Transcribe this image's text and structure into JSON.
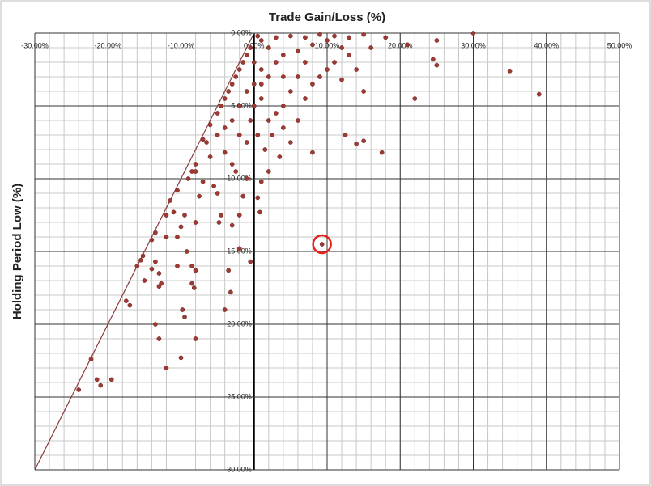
{
  "chart_data": {
    "type": "scatter",
    "title": "Trade Gain/Loss (%)",
    "y_label": "Holding Period Low (%)",
    "xlim": [
      -30,
      50
    ],
    "ylim": [
      -30,
      0
    ],
    "xticks": [
      {
        "value": -30,
        "label": "-30.00%"
      },
      {
        "value": -20,
        "label": "-20.00%"
      },
      {
        "value": -10,
        "label": "-10.00%"
      },
      {
        "value": 0,
        "label": "0.00%"
      },
      {
        "value": 10,
        "label": "10.00%"
      },
      {
        "value": 20,
        "label": "20.00%"
      },
      {
        "value": 30,
        "label": "30.00%"
      },
      {
        "value": 40,
        "label": "40.00%"
      },
      {
        "value": 50,
        "label": "50.00%"
      }
    ],
    "yticks": [
      {
        "value": 0,
        "label": "0.00%"
      },
      {
        "value": -5,
        "label": "-5.00%"
      },
      {
        "value": -10,
        "label": "-10.00%"
      },
      {
        "value": -15,
        "label": "-15.00%"
      },
      {
        "value": -20,
        "label": "-20.00%"
      },
      {
        "value": -25,
        "label": "-25.00%"
      },
      {
        "value": -30,
        "label": "-30.00%"
      }
    ],
    "grid": true,
    "minor_grid_step": {
      "x": 2,
      "y": 1
    },
    "reference_line": {
      "x": [
        -30,
        0
      ],
      "y": [
        -30,
        0
      ],
      "color": "#8b3a3a"
    },
    "highlight": {
      "x": 9.3,
      "y": -14.5,
      "color": "#e8201a"
    },
    "series": [
      {
        "color": "#9e3a34",
        "x": [
          30,
          35,
          39,
          25,
          25,
          24.5,
          22,
          21,
          17.5,
          15,
          14,
          12.5,
          8,
          9.3,
          -2,
          -0.5,
          -3.5,
          -3.2,
          -4,
          -8,
          -9.5,
          -9.8,
          -10,
          -12,
          -13,
          -13.5,
          -17,
          -17.5,
          -19.5,
          -21,
          -21.5,
          -22.3,
          -24,
          -15.2,
          -16,
          -14,
          -13.5,
          -13,
          -12.7,
          -13,
          -10.5,
          -8.5,
          -8,
          -8.5,
          -8.2,
          -9.2,
          -10.5,
          -10,
          -11,
          -12,
          -11.5,
          -9.5,
          -8,
          -7.5,
          -7,
          -5.5,
          -5,
          -4.5,
          -4.8,
          -3,
          -2,
          -1.5,
          0.5,
          0.8,
          1,
          2,
          -1,
          -2.5,
          -3,
          -4,
          -6,
          -8,
          -8.5,
          -6.5,
          -5,
          -4,
          -3,
          -2,
          -1,
          0,
          1,
          2,
          3,
          4,
          5,
          6,
          7,
          8,
          9,
          10,
          11,
          12,
          13,
          14,
          15,
          16,
          18,
          12,
          10,
          8,
          6,
          4,
          2,
          1,
          0.5,
          3,
          5,
          7,
          9,
          11,
          13,
          15,
          -1,
          -2,
          -3,
          -4,
          -5,
          -6,
          -7,
          -1.5,
          -2.5,
          -3.5,
          -4.5,
          -0.5,
          0,
          1,
          2,
          3,
          4,
          5,
          6,
          7,
          0,
          1,
          -0.5,
          0.5,
          1.5,
          -1,
          -2,
          2.5,
          3.5,
          4,
          -8,
          -10.5,
          -9,
          -12,
          -13.5,
          -15,
          -15.5,
          -14
        ],
        "y": [
          0,
          -2.6,
          -4.2,
          -0.5,
          -2.2,
          -1.8,
          -4.5,
          -0.8,
          -8.2,
          -7.4,
          -7.6,
          -7,
          -8.2,
          -14.5,
          -14.8,
          -15.7,
          -16.3,
          -17.8,
          -19,
          -21,
          -19.5,
          -19,
          -22.3,
          -23,
          -21,
          -20,
          -18.7,
          -18.4,
          -23.8,
          -24.2,
          -23.8,
          -22.4,
          -24.5,
          -15.3,
          -16,
          -16.2,
          -15.7,
          -16.5,
          -17.2,
          -17.4,
          -16,
          -16,
          -16.3,
          -17.2,
          -17.5,
          -15,
          -14,
          -13.3,
          -12.3,
          -12.5,
          -11.5,
          -12.5,
          -13,
          -11.2,
          -10.2,
          -10.5,
          -11,
          -12.5,
          -13,
          -13.2,
          -12.5,
          -11.2,
          -11.3,
          -12.3,
          -10.2,
          -9.5,
          -10,
          -9.5,
          -9,
          -8.2,
          -8.5,
          -9,
          -9.5,
          -7.5,
          -7,
          -6.5,
          -6,
          -5,
          -4,
          -5,
          -4.5,
          -6,
          -5.5,
          -6.5,
          -7.5,
          -6,
          -4.5,
          -3.5,
          -3,
          -2.5,
          -2,
          -3.2,
          -1.5,
          -2.5,
          -4,
          -1,
          -0.3,
          -1,
          -0.5,
          -0.8,
          -1.2,
          -1.5,
          -1,
          -0.5,
          -0.2,
          -0.3,
          -0.2,
          -0.3,
          -0.1,
          -0.2,
          -0.3,
          -0.1,
          -1.5,
          -2.5,
          -3.5,
          -4.5,
          -5.5,
          -6.3,
          -7.3,
          -2,
          -3,
          -4,
          -5,
          -1,
          -2,
          -2.5,
          -3,
          -2,
          -3,
          -4,
          -3,
          -2,
          -3.5,
          -3.5,
          -6,
          -7,
          -8,
          -7.5,
          -7,
          -7,
          -8.5,
          -5,
          -9.5,
          -10.8,
          -10,
          -14,
          -13.7,
          -17,
          -15.6,
          -14.2
        ]
      }
    ]
  }
}
